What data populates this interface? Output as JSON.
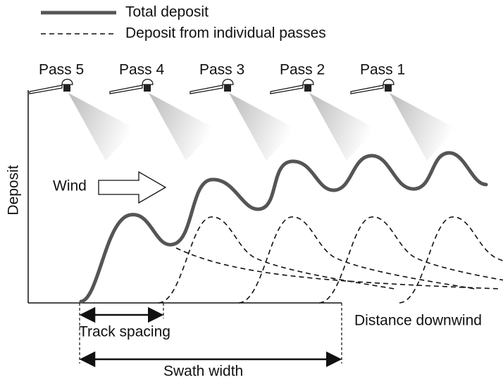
{
  "legend": {
    "total": "Total deposit",
    "individual": "Deposit from individual passes"
  },
  "passes": [
    "Pass 5",
    "Pass 4",
    "Pass 3",
    "Pass 2",
    "Pass 1"
  ],
  "wind": "Wind",
  "y_axis_label": "Deposit",
  "x_axis_label": "Distance downwind",
  "track_spacing": "Track spacing",
  "swath_width": "Swath width"
}
